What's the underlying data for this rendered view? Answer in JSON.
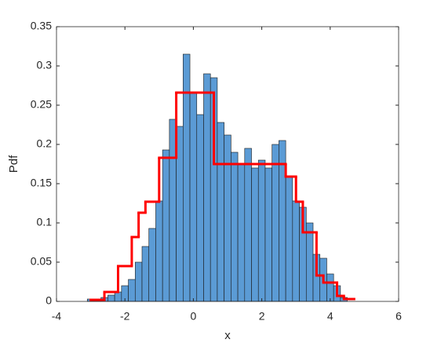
{
  "chart_data": {
    "type": "histogram",
    "xlabel": "x",
    "ylabel": "Pdf",
    "bins": [
      -3.1,
      -2.9,
      -2.7,
      -2.5,
      -2.3,
      -2.1,
      -1.9,
      -1.7,
      -1.5,
      -1.3,
      -1.1,
      -0.9,
      -0.7,
      -0.5,
      -0.3,
      -0.1,
      0.1,
      0.3,
      0.5,
      0.7,
      0.9,
      1.1,
      1.3,
      1.5,
      1.7,
      1.9,
      2.1,
      2.3,
      2.5,
      2.7,
      2.9,
      3.1,
      3.3,
      3.5,
      3.7,
      3.9,
      4.1,
      4.3,
      4.5
    ],
    "values": [
      0.003,
      0.003,
      0.005,
      0.008,
      0.012,
      0.02,
      0.028,
      0.05,
      0.07,
      0.093,
      0.128,
      0.193,
      0.232,
      0.223,
      0.315,
      0.265,
      0.238,
      0.29,
      0.285,
      0.228,
      0.212,
      0.19,
      0.175,
      0.195,
      0.17,
      0.18,
      0.17,
      0.2,
      0.205,
      0.16,
      0.128,
      0.12,
      0.1,
      0.06,
      0.055,
      0.035,
      0.02,
      0.005
    ],
    "color": "#5b9bd5",
    "step": {
      "color": "#ff0000",
      "edges": [
        -3.0,
        -2.6,
        -2.2,
        -1.8,
        -1.6,
        -1.4,
        -1.0,
        -0.5,
        0.6,
        2.7,
        3.0,
        3.2,
        3.6,
        3.8,
        4.2,
        4.4,
        4.7
      ],
      "values": [
        0.002,
        0.012,
        0.045,
        0.082,
        0.113,
        0.127,
        0.183,
        0.266,
        0.175,
        0.159,
        0.127,
        0.088,
        0.033,
        0.024,
        0.007,
        0.003
      ]
    },
    "xlim": [
      -4,
      6
    ],
    "xticks": [
      -4,
      -2,
      0,
      2,
      4,
      6
    ],
    "ylim": [
      0,
      0.35
    ],
    "yticks": [
      0,
      0.05,
      0.1,
      0.15,
      0.2,
      0.25,
      0.3,
      0.35
    ]
  }
}
